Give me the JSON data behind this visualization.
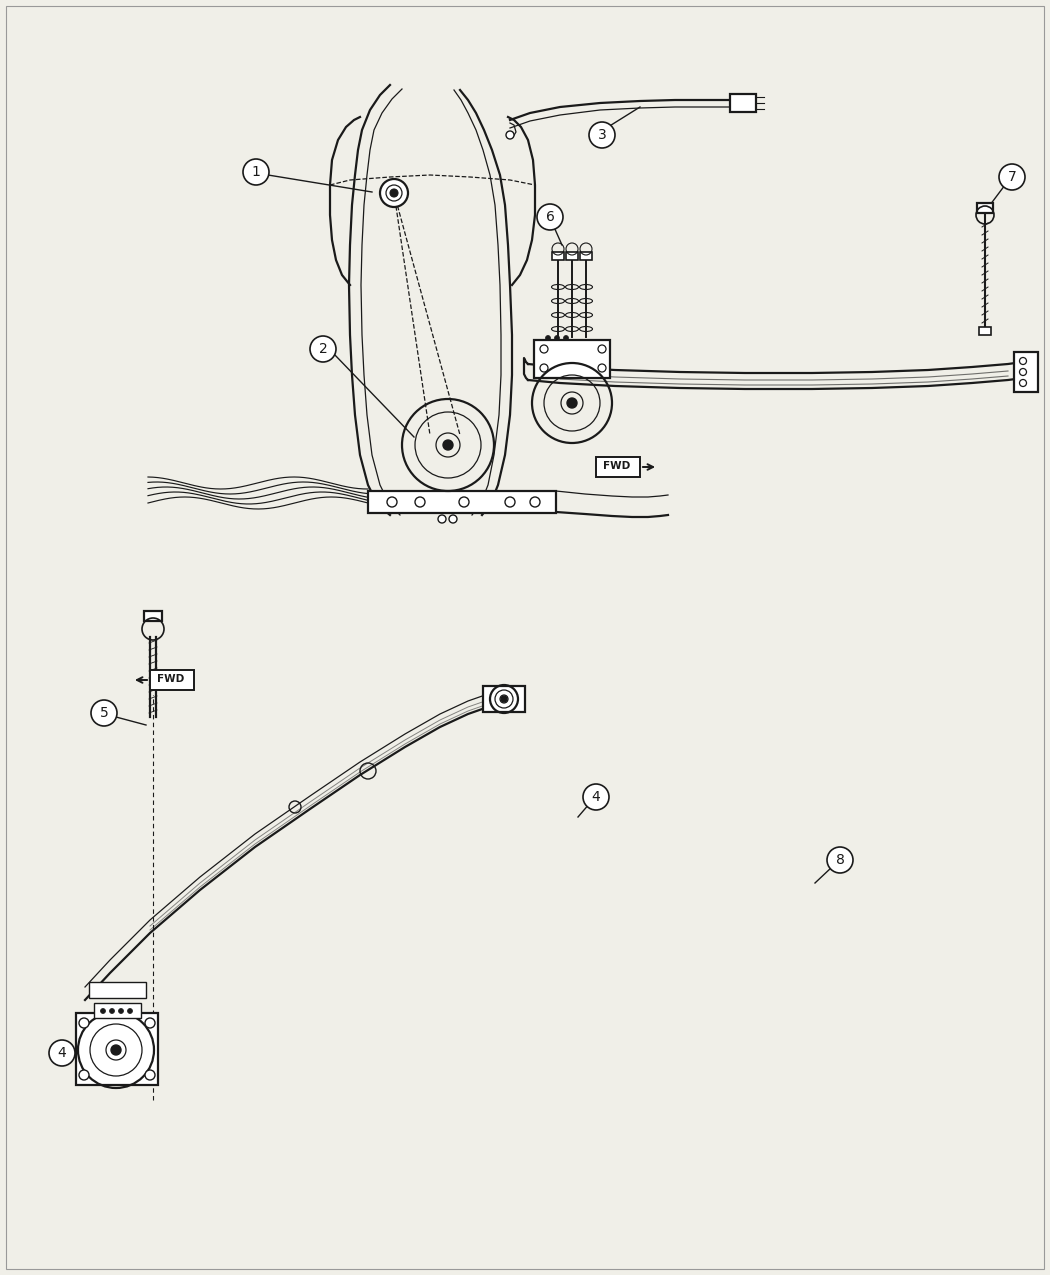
{
  "bg_color": "#f0efe8",
  "line_color": "#1a1a1a",
  "fig_width": 10.5,
  "fig_height": 12.75,
  "dpi": 100
}
